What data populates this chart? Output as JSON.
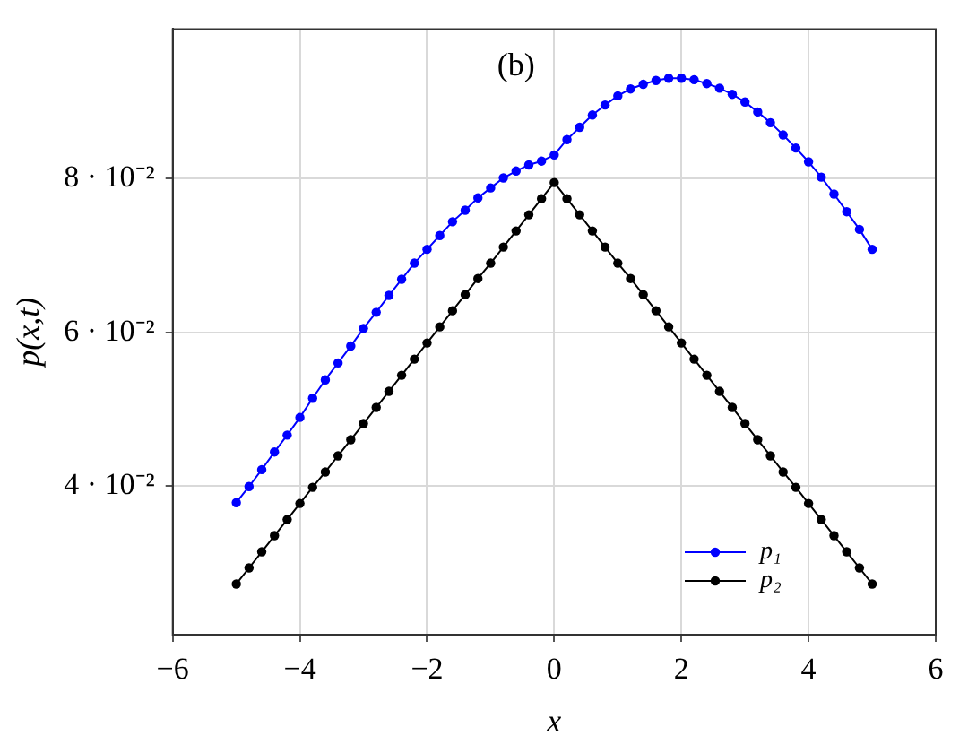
{
  "chart_data": {
    "type": "line",
    "xlabel": "x",
    "ylabel": "p(x,t)",
    "annotations": [
      "(b)"
    ],
    "x": [
      -5,
      -4.8,
      -4.6,
      -4.4,
      -4.2,
      -4,
      -3.8,
      -3.6,
      -3.4,
      -3.2,
      -3,
      -2.8,
      -2.6,
      -2.4,
      -2.2,
      -2,
      -1.8,
      -1.6,
      -1.4,
      -1.2,
      -1,
      -0.8,
      -0.6,
      -0.4,
      -0.2,
      0,
      0.2,
      0.4,
      0.6,
      0.8,
      1,
      1.2,
      1.4,
      1.6,
      1.8,
      2,
      2.2,
      2.4,
      2.6,
      2.8,
      3,
      3.2,
      3.4,
      3.6,
      3.8,
      4,
      4.2,
      4.4,
      4.6,
      4.8,
      5
    ],
    "series": [
      {
        "name": "p₁",
        "color": "#0000ff",
        "values": [
          0.0378,
          0.0399,
          0.0421,
          0.0444,
          0.0466,
          0.0489,
          0.0514,
          0.0538,
          0.056,
          0.0582,
          0.0605,
          0.0626,
          0.0648,
          0.0669,
          0.069,
          0.0708,
          0.0726,
          0.0744,
          0.0759,
          0.0775,
          0.0788,
          0.0801,
          0.081,
          0.0818,
          0.0823,
          0.0831,
          0.0851,
          0.0867,
          0.0883,
          0.0896,
          0.0908,
          0.0917,
          0.0923,
          0.0928,
          0.0931,
          0.0931,
          0.0929,
          0.0924,
          0.0918,
          0.091,
          0.09,
          0.0887,
          0.0873,
          0.0857,
          0.084,
          0.0822,
          0.0802,
          0.078,
          0.0757,
          0.0734,
          0.0708
        ]
      },
      {
        "name": "p₂",
        "color": "#000000",
        "values": [
          0.0272,
          0.0293,
          0.0314,
          0.0335,
          0.0356,
          0.0377,
          0.0398,
          0.0418,
          0.0439,
          0.046,
          0.0481,
          0.0502,
          0.0523,
          0.0544,
          0.0565,
          0.0586,
          0.0607,
          0.0628,
          0.0649,
          0.067,
          0.069,
          0.0711,
          0.0732,
          0.0753,
          0.0774,
          0.0795,
          0.0774,
          0.0753,
          0.0732,
          0.0711,
          0.069,
          0.067,
          0.0649,
          0.0628,
          0.0607,
          0.0586,
          0.0565,
          0.0544,
          0.0523,
          0.0502,
          0.0481,
          0.046,
          0.0439,
          0.0418,
          0.0398,
          0.0377,
          0.0356,
          0.0335,
          0.0314,
          0.0293,
          0.0272
        ]
      }
    ],
    "xlim": [
      -6,
      6
    ],
    "xticks": [
      {
        "value": -6,
        "label": "−6"
      },
      {
        "value": -4,
        "label": "−4"
      },
      {
        "value": -2,
        "label": "−2"
      },
      0,
      2,
      4,
      6
    ],
    "ylim": [
      0.0206,
      0.0995
    ],
    "yticks": [
      {
        "value": 0.04,
        "label": "4 · 10⁻²"
      },
      {
        "value": 0.06,
        "label": "6 · 10⁻²"
      },
      {
        "value": 0.08,
        "label": "8 · 10⁻²"
      }
    ],
    "grid": true,
    "legend": "bottom right",
    "marker": "circle",
    "line_style": "solid"
  }
}
